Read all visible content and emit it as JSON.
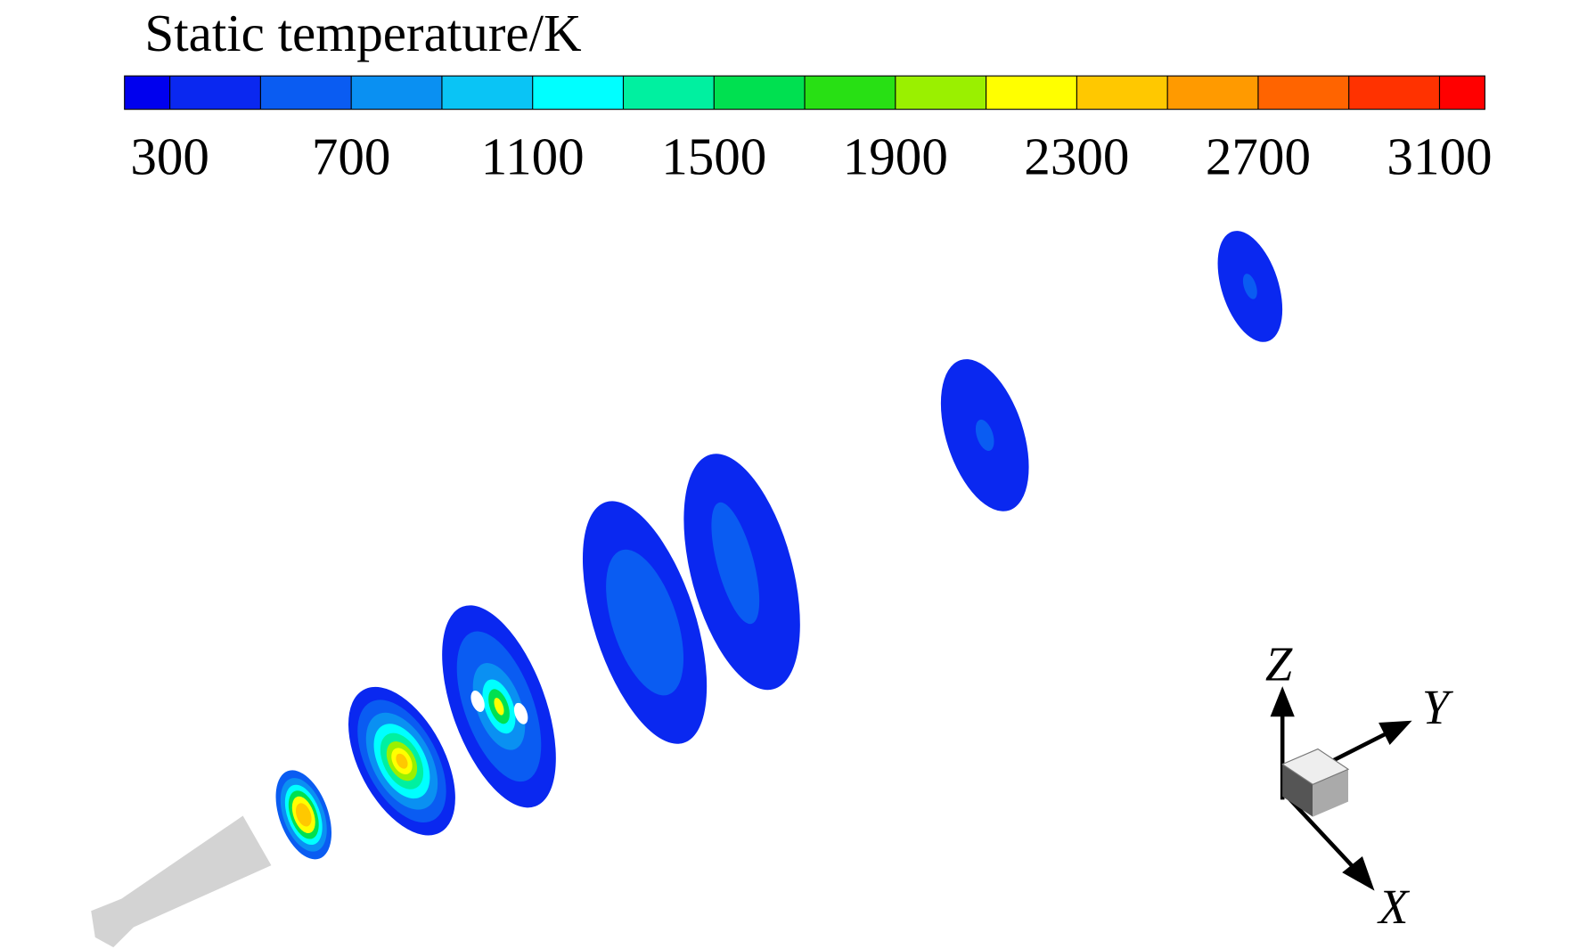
{
  "colorbar": {
    "title": "Static temperature/K",
    "range": [
      200,
      3200
    ],
    "levels": [
      300,
      500,
      700,
      900,
      1100,
      1300,
      1500,
      1700,
      1900,
      2100,
      2300,
      2500,
      2700,
      2900,
      3100
    ],
    "colors": [
      "#0000ee",
      "#0a28f0",
      "#0a5cf2",
      "#0a90f2",
      "#0ac4f5",
      "#00ffff",
      "#00f0a0",
      "#00e050",
      "#28e014",
      "#9af000",
      "#ffff00",
      "#ffc800",
      "#ff9a00",
      "#ff6400",
      "#ff3200",
      "#ff0000"
    ],
    "ticks": [
      300,
      700,
      1100,
      1500,
      1900,
      2300,
      2700,
      3100
    ]
  },
  "triad": {
    "z": "Z",
    "y": "Y",
    "x": "X"
  }
}
